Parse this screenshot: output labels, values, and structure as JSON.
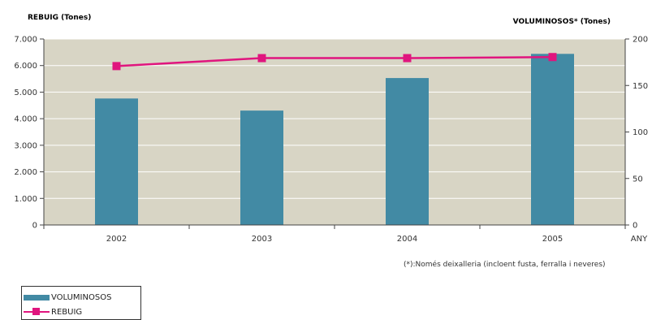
{
  "chart_data": {
    "type": "bar+line",
    "categories": [
      "2002",
      "2003",
      "2004",
      "2005"
    ],
    "xlabel": "ANY",
    "left_axis": {
      "title": "REBUIG (Tones)",
      "ylim": [
        0,
        7000
      ],
      "ticks": [
        "0",
        "1.000",
        "2.000",
        "3.000",
        "4.000",
        "5.000",
        "6.000",
        "7.000"
      ]
    },
    "right_axis": {
      "title": "VOLUMINOSOS* (Tones)",
      "ylim": [
        0,
        200
      ],
      "ticks": [
        "0",
        "50",
        "100",
        "150",
        "200"
      ]
    },
    "series": [
      {
        "name": "VOLUMINOSOS",
        "type": "bar",
        "axis": "right",
        "values": [
          136,
          123,
          158,
          184
        ]
      },
      {
        "name": "REBUIG",
        "type": "line",
        "axis": "left",
        "values": [
          5980,
          6280,
          6280,
          6320
        ]
      }
    ],
    "grid": true,
    "legend_position": "bottom-left",
    "footnote": "(*):Només deixalleria (incloent fusta, ferralla i neveres)"
  },
  "colors": {
    "plot_background": "#d8d5c5",
    "bar": "#428aa4",
    "line": "#e0157e",
    "grid": "#ffffff",
    "axis": "#444444"
  }
}
